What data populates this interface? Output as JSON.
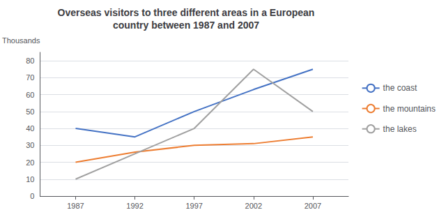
{
  "chart_data": {
    "type": "line",
    "title": "Overseas visitors to three different areas in a European\ncountry between 1987 and 2007",
    "y_label": "Thousands",
    "x": [
      1987,
      1992,
      1997,
      2002,
      2007
    ],
    "xlim": [
      1984,
      2010
    ],
    "xticks": [
      1987,
      1992,
      1997,
      2002,
      2007
    ],
    "series": [
      {
        "name": "the coast",
        "color": "#4472C4",
        "values": [
          40,
          35,
          50,
          63,
          75
        ]
      },
      {
        "name": "the mountains",
        "color": "#ED7D31",
        "values": [
          20,
          26,
          30,
          31,
          35
        ]
      },
      {
        "name": "the lakes",
        "color": "#A0A0A0",
        "values": [
          10,
          25,
          40,
          75,
          50
        ]
      }
    ],
    "ylim": [
      0,
      85
    ],
    "yticks": [
      0,
      10,
      20,
      30,
      40,
      50,
      60,
      70,
      80
    ],
    "grid": true,
    "legend": "right"
  }
}
